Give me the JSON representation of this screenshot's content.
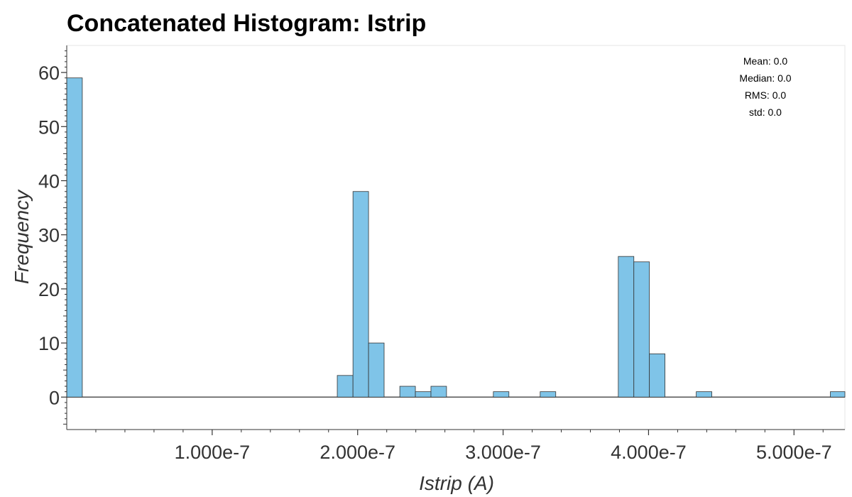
{
  "chart_data": {
    "type": "bar",
    "title": "Concatenated Histogram: Istrip",
    "xlabel": "Istrip (A)",
    "ylabel": "Frequency",
    "xlim": [
      0,
      5.35e-07
    ],
    "ylim": [
      -6,
      65
    ],
    "x_ticks": [
      1e-07,
      2e-07,
      3e-07,
      4e-07,
      5e-07
    ],
    "x_tick_labels": [
      "1.000e-7",
      "2.000e-7",
      "3.000e-7",
      "4.000e-7",
      "5.000e-7"
    ],
    "y_ticks": [
      0,
      10,
      20,
      30,
      40,
      50,
      60
    ],
    "y_tick_labels": [
      "0",
      "10",
      "20",
      "30",
      "40",
      "50",
      "60"
    ],
    "bin_width": 1.07e-08,
    "bins": [
      {
        "x0": 0.0,
        "x1": 1.07e-08,
        "count": 59
      },
      {
        "x0": 1.86e-07,
        "x1": 1.968e-07,
        "count": 4
      },
      {
        "x0": 1.968e-07,
        "x1": 2.075e-07,
        "count": 38
      },
      {
        "x0": 2.075e-07,
        "x1": 2.182e-07,
        "count": 10
      },
      {
        "x0": 2.29e-07,
        "x1": 2.397e-07,
        "count": 2
      },
      {
        "x0": 2.397e-07,
        "x1": 2.504e-07,
        "count": 1
      },
      {
        "x0": 2.504e-07,
        "x1": 2.611e-07,
        "count": 2
      },
      {
        "x0": 2.933e-07,
        "x1": 3.04e-07,
        "count": 1
      },
      {
        "x0": 3.255e-07,
        "x1": 3.362e-07,
        "count": 1
      },
      {
        "x0": 3.792e-07,
        "x1": 3.899e-07,
        "count": 26
      },
      {
        "x0": 3.899e-07,
        "x1": 4.006e-07,
        "count": 25
      },
      {
        "x0": 4.006e-07,
        "x1": 4.113e-07,
        "count": 8
      },
      {
        "x0": 4.328e-07,
        "x1": 4.435e-07,
        "count": 1
      },
      {
        "x0": 5.25e-07,
        "x1": 5.35e-07,
        "count": 1
      }
    ],
    "bar_color": "#7fc4e8",
    "bar_edge_color": "#333333",
    "stats": [
      "Mean: 0.0",
      "Median: 0.0",
      "RMS: 0.0",
      "std: 0.0"
    ],
    "grid": false
  }
}
